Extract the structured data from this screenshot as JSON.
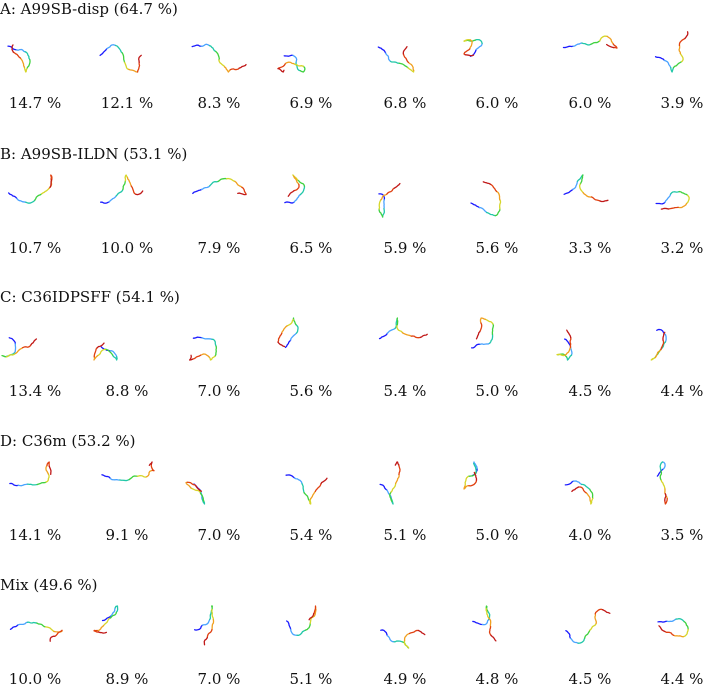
{
  "panels": [
    {
      "title": "A: A99SB-disp (64.7 %)",
      "clusters": [
        "14.7 %",
        "12.1 %",
        "8.3 %",
        "6.9 %",
        "6.8 %",
        "6.0 %",
        "6.0 %",
        "3.9 %"
      ]
    },
    {
      "title": "B: A99SB-ILDN (53.1 %)",
      "clusters": [
        "10.7 %",
        "10.0 %",
        "7.9 %",
        "6.5 %",
        "5.9 %",
        "5.6 %",
        "3.3 %",
        "3.2 %"
      ]
    },
    {
      "title": "C: C36IDPSFF (54.1 %)",
      "clusters": [
        "13.4 %",
        "8.8 %",
        "7.0 %",
        "5.6 %",
        "5.4 %",
        "5.0 %",
        "4.5 %",
        "4.4 %"
      ]
    },
    {
      "title": "D: C36m (53.2 %)",
      "clusters": [
        "14.1 %",
        "9.1 %",
        "7.0 %",
        "5.4 %",
        "5.1 %",
        "5.0 %",
        "4.0 %",
        "3.5 %"
      ]
    },
    {
      "title": "Mix (49.6 %)",
      "clusters": [
        "10.0 %",
        "8.9 %",
        "7.0 %",
        "5.1 %",
        "4.9 %",
        "4.8 %",
        "4.5 %",
        "4.4 %"
      ]
    }
  ],
  "gradient_colors": [
    "#1a1aff",
    "#4aa3ff",
    "#21c7a8",
    "#3ed13e",
    "#d6d62a",
    "#f0a020",
    "#e04010",
    "#c01818"
  ]
}
